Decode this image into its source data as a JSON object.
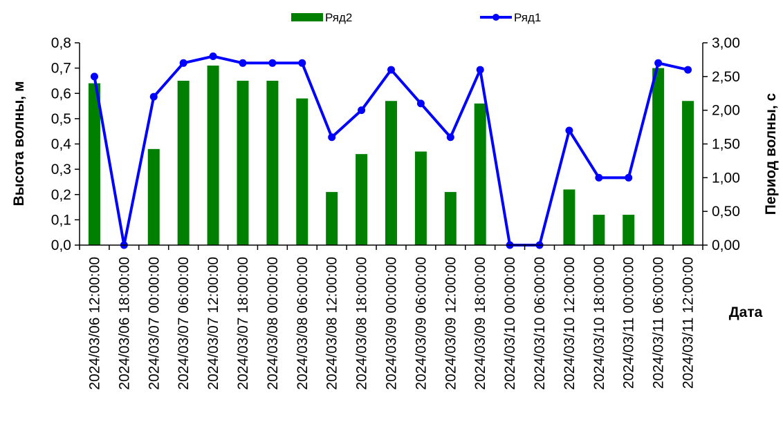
{
  "chart_data": {
    "type": "bar+line",
    "title": "",
    "xlabel": "Дата",
    "ylabel_left": "Высота волны, м",
    "ylabel_right": "Период волны, с",
    "ylim_left": [
      0,
      0.8
    ],
    "ylim_right": [
      0,
      3.0
    ],
    "yticks_left": [
      "0,0",
      "0,1",
      "0,2",
      "0,3",
      "0,4",
      "0,5",
      "0,6",
      "0,7",
      "0,8"
    ],
    "yticks_right": [
      "0,00",
      "0,50",
      "1,00",
      "1,50",
      "2,00",
      "2,50",
      "3,00"
    ],
    "grid": false,
    "legend_position": "top",
    "categories": [
      "2024/03/06 12:00:00",
      "2024/03/06 18:00:00",
      "2024/03/07 00:00:00",
      "2024/03/07 06:00:00",
      "2024/03/07 12:00:00",
      "2024/03/07 18:00:00",
      "2024/03/08 00:00:00",
      "2024/03/08 06:00:00",
      "2024/03/08 12:00:00",
      "2024/03/08 18:00:00",
      "2024/03/09 00:00:00",
      "2024/03/09 06:00:00",
      "2024/03/09 12:00:00",
      "2024/03/09 18:00:00",
      "2024/03/10 00:00:00",
      "2024/03/10 06:00:00",
      "2024/03/10 12:00:00",
      "2024/03/10 18:00:00",
      "2024/03/11 00:00:00",
      "2024/03/11 06:00:00",
      "2024/03/11 12:00:00"
    ],
    "series": [
      {
        "name": "Ряд2",
        "type": "bar",
        "axis": "left",
        "color": "#008000",
        "values": [
          0.64,
          0,
          0.38,
          0.65,
          0.71,
          0.65,
          0.65,
          0.58,
          0.21,
          0.36,
          0.57,
          0.37,
          0.21,
          0.56,
          0,
          0,
          0.22,
          0.12,
          0.12,
          0.7,
          0.57
        ]
      },
      {
        "name": "Ряд1",
        "type": "line",
        "axis": "right",
        "color": "#0000FF",
        "values": [
          2.5,
          0,
          2.2,
          2.7,
          2.8,
          2.7,
          2.7,
          2.7,
          1.6,
          2.0,
          2.6,
          2.1,
          1.6,
          2.6,
          0,
          0,
          1.7,
          1.0,
          1.0,
          2.7,
          2.6
        ]
      }
    ]
  }
}
